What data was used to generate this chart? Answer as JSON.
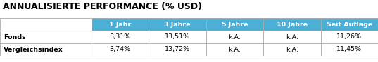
{
  "title": "ANNUALISIERTE PERFORMANCE (% USD)",
  "col_headers": [
    "1 Jahr",
    "3 Jahre",
    "5 Jahre",
    "10 Jahre",
    "Seit Auflage"
  ],
  "row_labels": [
    "Fonds",
    "Vergleichsindex"
  ],
  "table_data": [
    [
      "3,31%",
      "13,51%",
      "k.A.",
      "k.A.",
      "11,26%"
    ],
    [
      "3,74%",
      "13,72%",
      "k.A.",
      "k.A.",
      "11,45%"
    ]
  ],
  "header_bg": "#4bafd6",
  "header_fg": "#ffffff",
  "row_label_fg": "#000000",
  "cell_fg": "#000000",
  "title_fg": "#000000",
  "bg_color": "#ffffff",
  "border_color": "#aaaaaa",
  "title_fontsize": 9.0,
  "header_fontsize": 6.8,
  "cell_fontsize": 6.8,
  "row_label_fontsize": 6.8,
  "figsize": [
    5.37,
    0.89
  ],
  "dpi": 100
}
